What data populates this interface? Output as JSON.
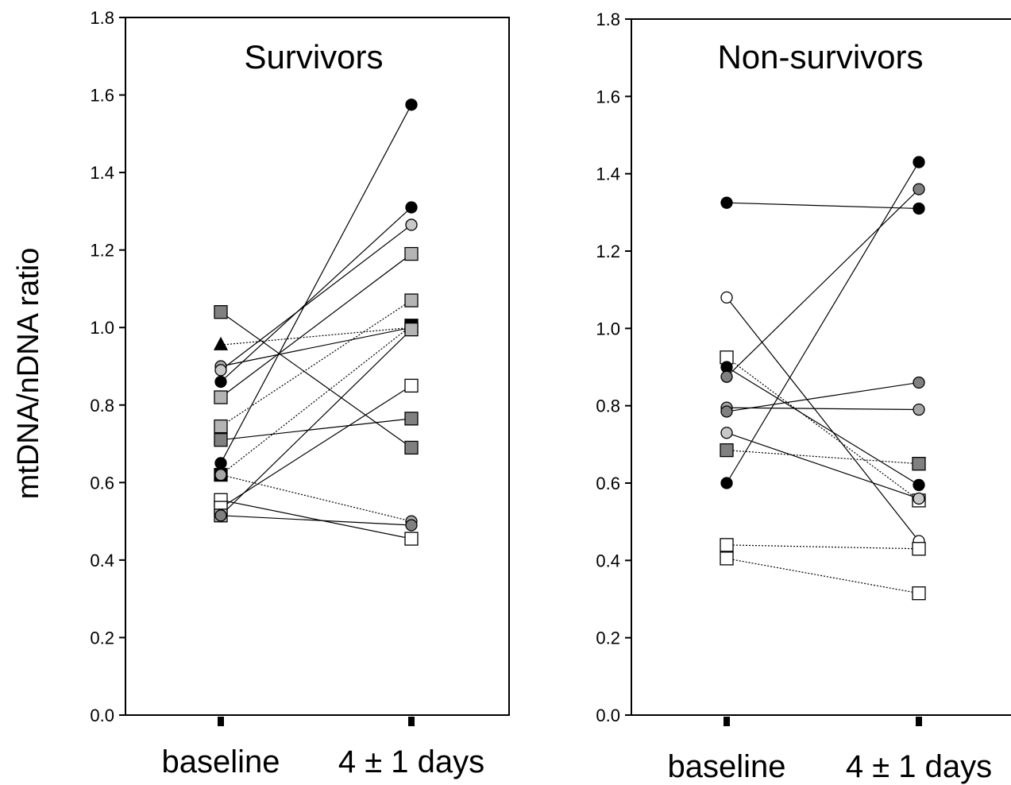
{
  "chart_data": {
    "type": "line",
    "ylabel": "mtDNA/nDNA ratio",
    "ylim": [
      0,
      1.8
    ],
    "yticks": [
      "0.0",
      "0.2",
      "0.4",
      "0.6",
      "0.8",
      "1.0",
      "1.2",
      "1.4",
      "1.6",
      "1.8"
    ],
    "categories": [
      "baseline",
      "4 ± 1 days"
    ],
    "grid": false,
    "panels": [
      {
        "title": "Survivors",
        "series": [
          {
            "marker": "square",
            "fill": "#808080",
            "line": "solid",
            "values": [
              1.04,
              0.69
            ]
          },
          {
            "marker": "triangle",
            "fill": "#000000",
            "line": "dotted",
            "values": [
              0.955,
              1.0
            ]
          },
          {
            "marker": "circle",
            "fill": "#a6a6a6",
            "line": "solid",
            "values": [
              0.9,
              1.0
            ]
          },
          {
            "marker": "circle",
            "fill": "#c8c8c8",
            "line": "solid",
            "values": [
              0.89,
              1.265
            ]
          },
          {
            "marker": "circle",
            "fill": "#000000",
            "line": "solid",
            "values": [
              0.86,
              1.31
            ]
          },
          {
            "marker": "square",
            "fill": "#b4b4b4",
            "line": "solid",
            "values": [
              0.82,
              1.19
            ]
          },
          {
            "marker": "square",
            "fill": "#b4b4b4",
            "line": "dotted",
            "values": [
              0.745,
              1.07
            ]
          },
          {
            "marker": "square",
            "fill": "#808080",
            "line": "solid",
            "values": [
              0.71,
              0.765
            ]
          },
          {
            "marker": "circle",
            "fill": "#000000",
            "line": "solid",
            "values": [
              0.65,
              1.575
            ]
          },
          {
            "marker": "square",
            "fill": "#000000",
            "line": "dotted",
            "values": [
              0.62,
              1.005
            ]
          },
          {
            "marker": "circle",
            "fill": "#a6a6a6",
            "line": "dotted",
            "values": [
              0.62,
              0.5
            ]
          },
          {
            "marker": "square",
            "fill": "#ffffff",
            "line": "solid",
            "values": [
              0.555,
              0.455
            ]
          },
          {
            "marker": "square",
            "fill": "#ffffff",
            "line": "solid",
            "values": [
              0.535,
              0.85
            ]
          },
          {
            "marker": "square",
            "fill": "#b4b4b4",
            "line": "solid",
            "values": [
              0.515,
              0.995
            ]
          },
          {
            "marker": "circle",
            "fill": "#808080",
            "line": "solid",
            "values": [
              0.515,
              0.49
            ]
          }
        ]
      },
      {
        "title": "Non-survivors",
        "series": [
          {
            "marker": "circle",
            "fill": "#000000",
            "line": "solid",
            "values": [
              1.325,
              1.31
            ]
          },
          {
            "marker": "circle",
            "fill": "#ffffff",
            "line": "solid",
            "values": [
              1.08,
              0.45
            ]
          },
          {
            "marker": "square",
            "fill": "#ffffff",
            "line": "dotted",
            "values": [
              0.925,
              0.555
            ]
          },
          {
            "marker": "circle",
            "fill": "#000000",
            "line": "solid",
            "values": [
              0.9,
              0.595
            ]
          },
          {
            "marker": "circle",
            "fill": "#808080",
            "line": "solid",
            "values": [
              0.875,
              1.36
            ]
          },
          {
            "marker": "circle",
            "fill": "#a6a6a6",
            "line": "solid",
            "values": [
              0.795,
              0.79
            ]
          },
          {
            "marker": "circle",
            "fill": "#808080",
            "line": "solid",
            "values": [
              0.785,
              0.86
            ]
          },
          {
            "marker": "circle",
            "fill": "#c8c8c8",
            "line": "solid",
            "values": [
              0.73,
              0.56
            ]
          },
          {
            "marker": "square",
            "fill": "#808080",
            "line": "dotted",
            "values": [
              0.685,
              0.65
            ]
          },
          {
            "marker": "circle",
            "fill": "#000000",
            "line": "solid",
            "values": [
              0.6,
              1.43
            ]
          },
          {
            "marker": "square",
            "fill": "#ffffff",
            "line": "dotted",
            "values": [
              0.44,
              0.43
            ]
          },
          {
            "marker": "square",
            "fill": "#ffffff",
            "line": "dotted",
            "values": [
              0.405,
              0.315
            ]
          }
        ]
      }
    ]
  }
}
